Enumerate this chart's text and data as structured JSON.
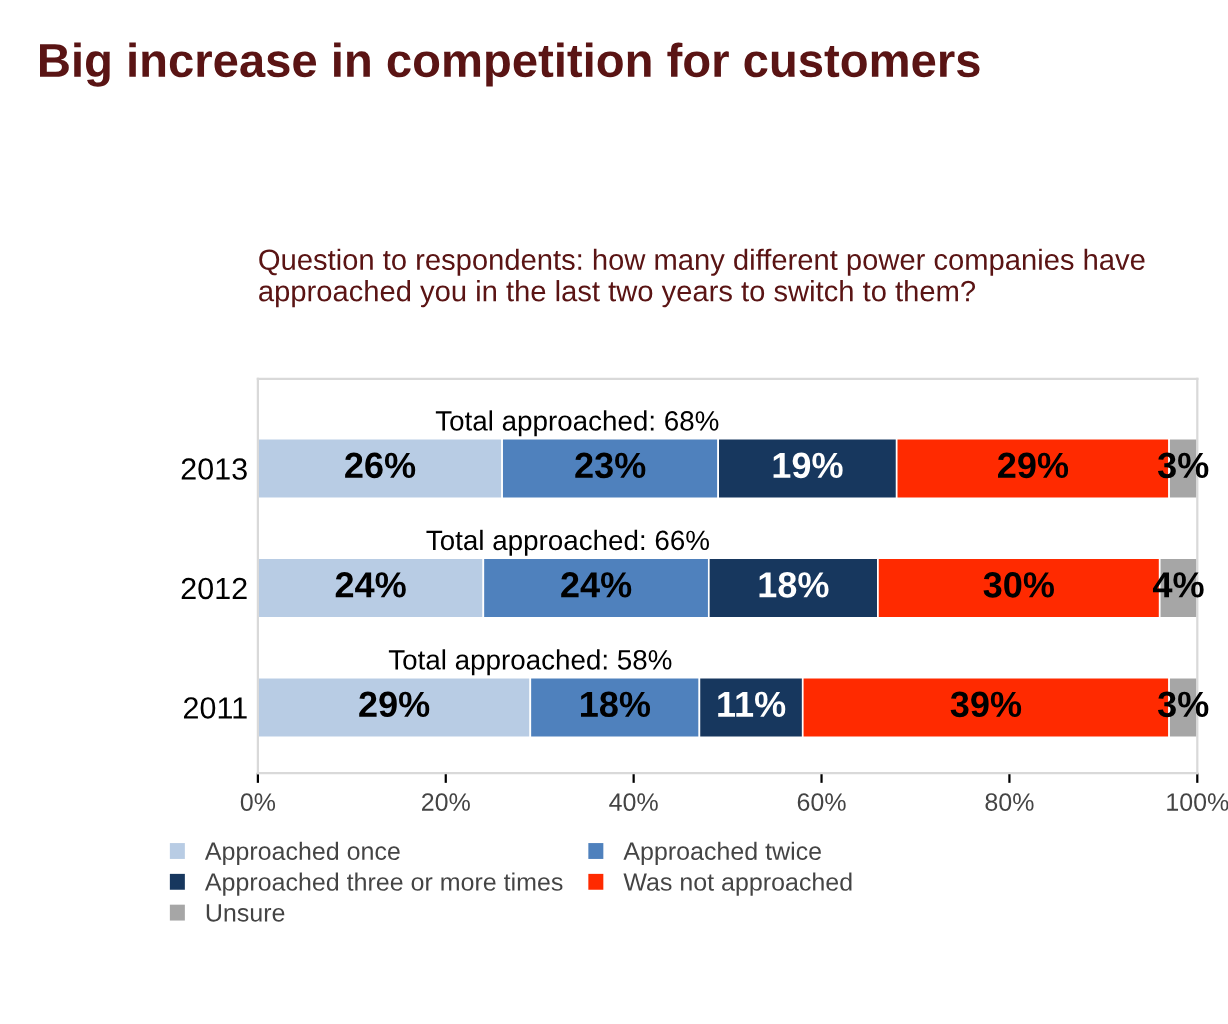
{
  "chart_data": {
    "type": "bar",
    "orientation": "horizontal",
    "stacked": true,
    "title": "Big increase in competition for customers",
    "subtitle": "Question to respondents: how many different power companies have approached you in the last two years to switch to them?",
    "categories": [
      "2013",
      "2012",
      "2011"
    ],
    "series": [
      {
        "name": "Approached once",
        "color": "#b8cce4",
        "values": [
          26,
          24,
          29
        ],
        "value_labels": [
          "26%",
          "24%",
          "29%"
        ]
      },
      {
        "name": "Approached twice",
        "color": "#4f81bd",
        "values": [
          23,
          24,
          18
        ],
        "value_labels": [
          "23%",
          "24%",
          "18%"
        ]
      },
      {
        "name": "Approached three or more times",
        "color": "#17375e",
        "values": [
          19,
          18,
          11
        ],
        "value_labels": [
          "19%",
          "18%",
          "11%"
        ]
      },
      {
        "name": "Was not approached",
        "color": "#ff2a00",
        "values": [
          29,
          30,
          39
        ],
        "value_labels": [
          "29%",
          "30%",
          "39%"
        ]
      },
      {
        "name": "Unsure",
        "color": "#a6a6a6",
        "values": [
          3,
          4,
          3
        ],
        "value_labels": [
          "3%",
          "4%",
          "3%"
        ]
      }
    ],
    "annotations": [
      "Total approached: 68%",
      "Total approached: 66%",
      "Total approached: 58%"
    ],
    "xlim": [
      0,
      100
    ],
    "xticks": [
      {
        "value": 0,
        "label": "0%"
      },
      {
        "value": 20,
        "label": "20%"
      },
      {
        "value": 40,
        "label": "40%"
      },
      {
        "value": 60,
        "label": "60%"
      },
      {
        "value": 80,
        "label": "80%"
      },
      {
        "value": 100,
        "label": "100%"
      }
    ],
    "legend": "bottom",
    "grid": false
  }
}
